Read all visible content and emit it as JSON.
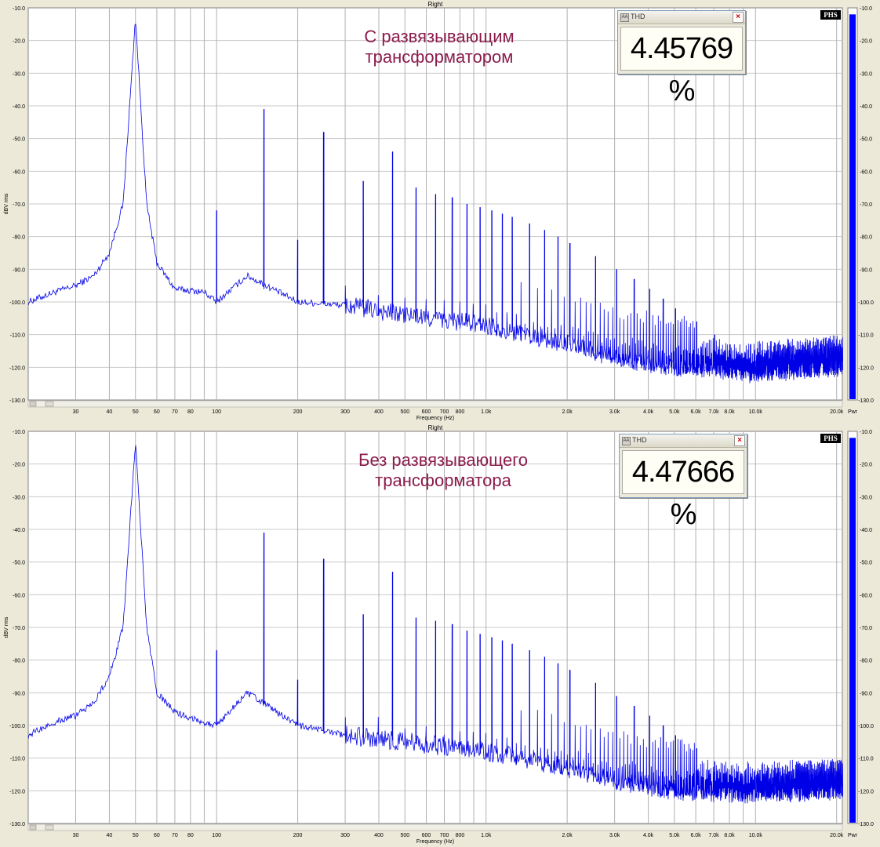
{
  "chart_data": [
    {
      "type": "line",
      "title": "Right",
      "xlabel": "Frequency (Hz)",
      "ylabel": "dBV rms",
      "xscale": "log",
      "xlim": [
        20,
        21000
      ],
      "ylim": [
        -130,
        -10
      ],
      "grid": true,
      "yticks": [
        "-10.0",
        "-20.0",
        "-30.0",
        "-40.0",
        "-50.0",
        "-60.0",
        "-70.0",
        "-80.0",
        "-90.0",
        "-100.0",
        "-110.0",
        "-120.0",
        "-130.0"
      ],
      "xticks": [
        {
          "v": 30,
          "l": "30"
        },
        {
          "v": 40,
          "l": "40"
        },
        {
          "v": 50,
          "l": "50"
        },
        {
          "v": 60,
          "l": "60"
        },
        {
          "v": 70,
          "l": "70"
        },
        {
          "v": 80,
          "l": "80"
        },
        {
          "v": 100,
          "l": "100"
        },
        {
          "v": 200,
          "l": "200"
        },
        {
          "v": 300,
          "l": "300"
        },
        {
          "v": 400,
          "l": "400"
        },
        {
          "v": 500,
          "l": "500"
        },
        {
          "v": 600,
          "l": "600"
        },
        {
          "v": 700,
          "l": "700"
        },
        {
          "v": 800,
          "l": "800"
        },
        {
          "v": 1000,
          "l": "1.0k"
        },
        {
          "v": 2000,
          "l": "2.0k"
        },
        {
          "v": 3000,
          "l": "3.0k"
        },
        {
          "v": 4000,
          "l": "4.0k"
        },
        {
          "v": 5000,
          "l": "5.0k"
        },
        {
          "v": 6000,
          "l": "6.0k"
        },
        {
          "v": 7000,
          "l": "7.0k"
        },
        {
          "v": 8000,
          "l": "8.0k"
        },
        {
          "v": 10000,
          "l": "10.0k"
        },
        {
          "v": 20000,
          "l": "20.0k"
        }
      ],
      "extra_gridlines": [
        90,
        900,
        9000
      ],
      "annotation": [
        "С развязывающим",
        "трансформатором"
      ],
      "thd_title": "THD",
      "thd_value": "4.45769 %",
      "meter_label": "Pwr",
      "meter_level": -12,
      "fundamental_hz": 50,
      "peaks": [
        {
          "f": 50,
          "db": -13
        },
        {
          "f": 100,
          "db": -72
        },
        {
          "f": 150,
          "db": -41
        },
        {
          "f": 200,
          "db": -81
        },
        {
          "f": 250,
          "db": -48
        },
        {
          "f": 350,
          "db": -63
        },
        {
          "f": 450,
          "db": -54
        },
        {
          "f": 550,
          "db": -65
        },
        {
          "f": 650,
          "db": -67
        },
        {
          "f": 750,
          "db": -68
        },
        {
          "f": 850,
          "db": -70
        },
        {
          "f": 950,
          "db": -71
        },
        {
          "f": 1050,
          "db": -72
        },
        {
          "f": 1150,
          "db": -73
        },
        {
          "f": 1250,
          "db": -74
        },
        {
          "f": 1450,
          "db": -76
        },
        {
          "f": 1650,
          "db": -78
        },
        {
          "f": 1850,
          "db": -80
        },
        {
          "f": 2050,
          "db": -82
        },
        {
          "f": 2550,
          "db": -86
        },
        {
          "f": 3050,
          "db": -90
        },
        {
          "f": 3550,
          "db": -93
        },
        {
          "f": 4050,
          "db": -96
        },
        {
          "f": 4550,
          "db": -99
        },
        {
          "f": 5050,
          "db": -102
        },
        {
          "f": 6050,
          "db": -106
        },
        {
          "f": 7050,
          "db": -110
        },
        {
          "f": 8050,
          "db": -113
        },
        {
          "f": 9050,
          "db": -117
        },
        {
          "f": 10050,
          "db": -120
        }
      ],
      "floor": [
        {
          "f": 20,
          "db": -100
        },
        {
          "f": 25,
          "db": -97
        },
        {
          "f": 30,
          "db": -95
        },
        {
          "f": 35,
          "db": -92
        },
        {
          "f": 40,
          "db": -85
        },
        {
          "f": 45,
          "db": -70
        },
        {
          "f": 50,
          "db": -13
        },
        {
          "f": 55,
          "db": -70
        },
        {
          "f": 60,
          "db": -88
        },
        {
          "f": 70,
          "db": -96
        },
        {
          "f": 90,
          "db": -97
        },
        {
          "f": 100,
          "db": -100
        },
        {
          "f": 130,
          "db": -92
        },
        {
          "f": 200,
          "db": -100
        },
        {
          "f": 300,
          "db": -101
        },
        {
          "f": 500,
          "db": -104
        },
        {
          "f": 1000,
          "db": -107
        },
        {
          "f": 2000,
          "db": -113
        },
        {
          "f": 3000,
          "db": -117
        },
        {
          "f": 5000,
          "db": -120
        },
        {
          "f": 10000,
          "db": -122
        },
        {
          "f": 20000,
          "db": -120
        }
      ]
    },
    {
      "type": "line",
      "title": "Right",
      "xlabel": "Frequency (Hz)",
      "ylabel": "dBV rms",
      "xscale": "log",
      "xlim": [
        20,
        21000
      ],
      "ylim": [
        -130,
        -10
      ],
      "grid": true,
      "yticks": [
        "-10.0",
        "-20.0",
        "-30.0",
        "-40.0",
        "-50.0",
        "-60.0",
        "-70.0",
        "-80.0",
        "-90.0",
        "-100.0",
        "-110.0",
        "-120.0",
        "-130.0"
      ],
      "xticks": [
        {
          "v": 30,
          "l": "30"
        },
        {
          "v": 40,
          "l": "40"
        },
        {
          "v": 50,
          "l": "50"
        },
        {
          "v": 60,
          "l": "60"
        },
        {
          "v": 70,
          "l": "70"
        },
        {
          "v": 80,
          "l": "80"
        },
        {
          "v": 100,
          "l": "100"
        },
        {
          "v": 200,
          "l": "200"
        },
        {
          "v": 300,
          "l": "300"
        },
        {
          "v": 400,
          "l": "400"
        },
        {
          "v": 500,
          "l": "500"
        },
        {
          "v": 600,
          "l": "600"
        },
        {
          "v": 700,
          "l": "700"
        },
        {
          "v": 800,
          "l": "800"
        },
        {
          "v": 1000,
          "l": "1.0k"
        },
        {
          "v": 2000,
          "l": "2.0k"
        },
        {
          "v": 3000,
          "l": "3.0k"
        },
        {
          "v": 4000,
          "l": "4.0k"
        },
        {
          "v": 5000,
          "l": "5.0k"
        },
        {
          "v": 6000,
          "l": "6.0k"
        },
        {
          "v": 7000,
          "l": "7.0k"
        },
        {
          "v": 8000,
          "l": "8.0k"
        },
        {
          "v": 10000,
          "l": "10.0k"
        },
        {
          "v": 20000,
          "l": "20.0k"
        }
      ],
      "extra_gridlines": [
        90,
        900,
        9000
      ],
      "annotation": [
        "Без развязывающего",
        "трансформатора"
      ],
      "thd_title": "THD",
      "thd_value": "4.47666 %",
      "meter_label": "Pwr",
      "meter_level": -12,
      "fundamental_hz": 50,
      "peaks": [
        {
          "f": 50,
          "db": -13
        },
        {
          "f": 100,
          "db": -77
        },
        {
          "f": 150,
          "db": -41
        },
        {
          "f": 200,
          "db": -86
        },
        {
          "f": 250,
          "db": -49
        },
        {
          "f": 350,
          "db": -66
        },
        {
          "f": 450,
          "db": -53
        },
        {
          "f": 550,
          "db": -67
        },
        {
          "f": 650,
          "db": -68
        },
        {
          "f": 750,
          "db": -69
        },
        {
          "f": 850,
          "db": -71
        },
        {
          "f": 950,
          "db": -72
        },
        {
          "f": 1050,
          "db": -73
        },
        {
          "f": 1150,
          "db": -74
        },
        {
          "f": 1250,
          "db": -75
        },
        {
          "f": 1450,
          "db": -77
        },
        {
          "f": 1650,
          "db": -79
        },
        {
          "f": 1850,
          "db": -81
        },
        {
          "f": 2050,
          "db": -83
        },
        {
          "f": 2550,
          "db": -87
        },
        {
          "f": 3050,
          "db": -91
        },
        {
          "f": 3550,
          "db": -94
        },
        {
          "f": 4050,
          "db": -97
        },
        {
          "f": 4550,
          "db": -100
        },
        {
          "f": 5050,
          "db": -103
        },
        {
          "f": 6050,
          "db": -107
        },
        {
          "f": 7050,
          "db": -111
        },
        {
          "f": 8050,
          "db": -115
        },
        {
          "f": 9050,
          "db": -118
        },
        {
          "f": 10050,
          "db": -121
        }
      ],
      "floor": [
        {
          "f": 20,
          "db": -103
        },
        {
          "f": 25,
          "db": -99
        },
        {
          "f": 30,
          "db": -97
        },
        {
          "f": 35,
          "db": -93
        },
        {
          "f": 40,
          "db": -85
        },
        {
          "f": 45,
          "db": -70
        },
        {
          "f": 50,
          "db": -13
        },
        {
          "f": 55,
          "db": -70
        },
        {
          "f": 60,
          "db": -90
        },
        {
          "f": 70,
          "db": -96
        },
        {
          "f": 90,
          "db": -99
        },
        {
          "f": 100,
          "db": -100
        },
        {
          "f": 130,
          "db": -90
        },
        {
          "f": 200,
          "db": -100
        },
        {
          "f": 300,
          "db": -103
        },
        {
          "f": 500,
          "db": -105
        },
        {
          "f": 1000,
          "db": -108
        },
        {
          "f": 2000,
          "db": -113
        },
        {
          "f": 3000,
          "db": -117
        },
        {
          "f": 5000,
          "db": -120
        },
        {
          "f": 10000,
          "db": -121
        },
        {
          "f": 20000,
          "db": -120
        }
      ]
    }
  ],
  "phs_label": "PHS"
}
